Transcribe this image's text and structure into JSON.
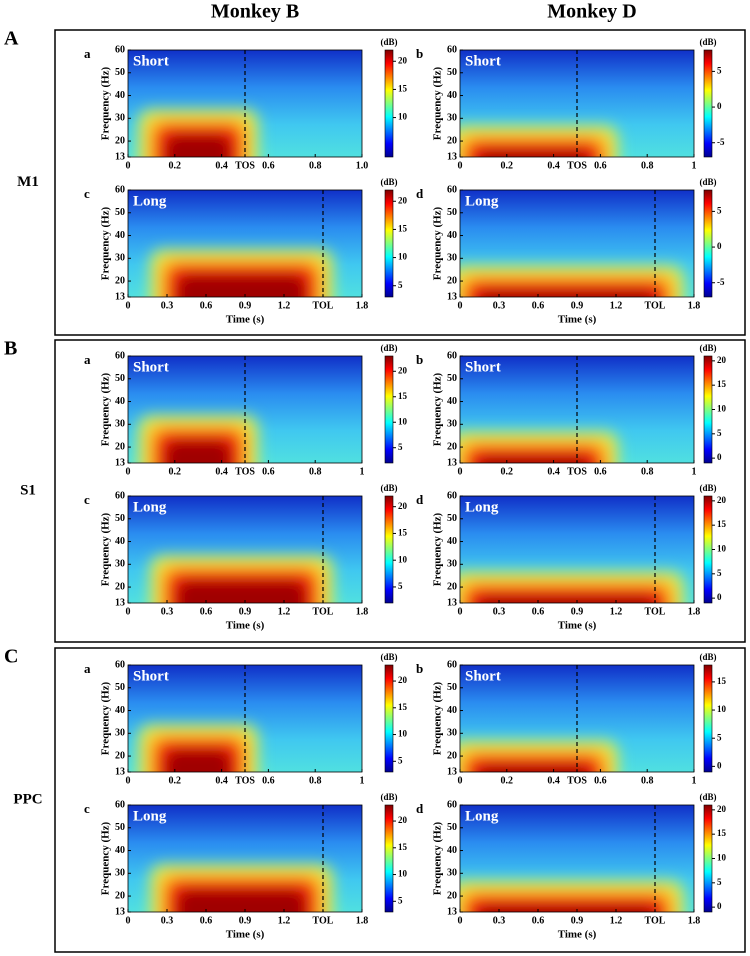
{
  "columns": [
    "Monkey B",
    "Monkey D"
  ],
  "sections": [
    {
      "letter": "A",
      "region": "M1",
      "panels": [
        {
          "letter": "a",
          "label": "Short",
          "xlim": [
            0,
            1
          ],
          "xticks": [
            0,
            0.2,
            0.4,
            {
              "value": 0.5,
              "label": "TOS"
            },
            0.6,
            0.8,
            {
              "value": 1,
              "label": "1.0"
            }
          ],
          "ylim": [
            13,
            60
          ],
          "yticks": [
            13,
            20,
            30,
            40,
            50,
            60
          ],
          "ylabel": "Frequency (Hz)",
          "clim": [
            3,
            22
          ],
          "cticks": [
            10,
            15,
            20
          ],
          "clabel": "(dB)"
        },
        {
          "letter": "b",
          "label": "Short",
          "xlim": [
            0,
            1
          ],
          "xticks": [
            0,
            0.2,
            0.4,
            {
              "value": 0.5,
              "label": "TOS"
            },
            0.6,
            0.8,
            1
          ],
          "ylim": [
            13,
            60
          ],
          "yticks": [
            13,
            20,
            30,
            40,
            50,
            60
          ],
          "ylabel": "Frequency (Hz)",
          "clim": [
            -7,
            8
          ],
          "cticks": [
            -5,
            0,
            5
          ],
          "clabel": "(dB)"
        },
        {
          "letter": "c",
          "label": "Long",
          "xlim": [
            0,
            1.8
          ],
          "xticks": [
            0,
            0.3,
            0.6,
            0.9,
            1.2,
            {
              "value": 1.5,
              "label": "TOL"
            },
            1.8
          ],
          "ylim": [
            13,
            60
          ],
          "yticks": [
            13,
            20,
            30,
            40,
            50,
            60
          ],
          "ylabel": "Frequency (Hz)",
          "xlabel": "Time (s)",
          "clim": [
            3,
            22
          ],
          "cticks": [
            5,
            10,
            15,
            20
          ],
          "clabel": "(dB)"
        },
        {
          "letter": "d",
          "label": "Long",
          "xlim": [
            0,
            1.8
          ],
          "xticks": [
            0,
            0.3,
            0.6,
            0.9,
            1.2,
            {
              "value": 1.5,
              "label": "TOL"
            },
            1.8
          ],
          "ylim": [
            13,
            60
          ],
          "yticks": [
            13,
            20,
            30,
            40,
            50,
            60
          ],
          "ylabel": "Frequency (Hz)",
          "xlabel": "Time (s)",
          "clim": [
            -7,
            8
          ],
          "cticks": [
            -5,
            0,
            5
          ],
          "clabel": "(dB)"
        }
      ]
    },
    {
      "letter": "B",
      "region": "S1",
      "panels": [
        {
          "letter": "a",
          "label": "Short",
          "xlim": [
            0,
            1
          ],
          "xticks": [
            0,
            0.2,
            0.4,
            {
              "value": 0.5,
              "label": "TOS"
            },
            0.6,
            0.8,
            1
          ],
          "ylim": [
            13,
            60
          ],
          "yticks": [
            13,
            20,
            30,
            40,
            50,
            60
          ],
          "ylabel": "Frequency (Hz)",
          "clim": [
            2,
            23
          ],
          "cticks": [
            5,
            10,
            15,
            20
          ],
          "clabel": "(dB)"
        },
        {
          "letter": "b",
          "label": "Short",
          "xlim": [
            0,
            1
          ],
          "xticks": [
            0,
            0.2,
            0.4,
            {
              "value": 0.5,
              "label": "TOS"
            },
            0.6,
            0.8,
            1
          ],
          "ylim": [
            13,
            60
          ],
          "yticks": [
            13,
            20,
            30,
            40,
            50,
            60
          ],
          "ylabel": "Frequency (Hz)",
          "clim": [
            -1,
            21
          ],
          "cticks": [
            0,
            5,
            10,
            15,
            20
          ],
          "clabel": "(dB)"
        },
        {
          "letter": "c",
          "label": "Long",
          "xlim": [
            0,
            1.8
          ],
          "xticks": [
            0,
            0.3,
            0.6,
            0.9,
            1.2,
            {
              "value": 1.5,
              "label": "TOL"
            },
            1.8
          ],
          "ylim": [
            13,
            60
          ],
          "yticks": [
            13,
            20,
            30,
            40,
            50,
            60
          ],
          "ylabel": "Frequency (Hz)",
          "xlabel": "Time (s)",
          "clim": [
            2,
            22
          ],
          "cticks": [
            5,
            10,
            15,
            20
          ],
          "clabel": "(dB)"
        },
        {
          "letter": "d",
          "label": "Long",
          "xlim": [
            0,
            1.8
          ],
          "xticks": [
            0,
            0.3,
            0.6,
            0.9,
            1.2,
            {
              "value": 1.5,
              "label": "TOL"
            },
            1.8
          ],
          "ylim": [
            13,
            60
          ],
          "yticks": [
            13,
            20,
            30,
            40,
            50,
            60
          ],
          "ylabel": "Frequency (Hz)",
          "xlabel": "Time (s)",
          "clim": [
            -1,
            21
          ],
          "cticks": [
            0,
            5,
            10,
            15,
            20
          ],
          "clabel": "(dB)"
        }
      ]
    },
    {
      "letter": "C",
      "region": "PPC",
      "panels": [
        {
          "letter": "a",
          "label": "Short",
          "xlim": [
            0,
            1
          ],
          "xticks": [
            0,
            0.2,
            0.4,
            {
              "value": 0.5,
              "label": "TOS"
            },
            0.6,
            0.8,
            1
          ],
          "ylim": [
            13,
            60
          ],
          "yticks": [
            13,
            20,
            30,
            40,
            50,
            60
          ],
          "ylabel": "Frequency (Hz)",
          "clim": [
            3,
            23
          ],
          "cticks": [
            5,
            10,
            15,
            20
          ],
          "clabel": "(dB)"
        },
        {
          "letter": "b",
          "label": "Short",
          "xlim": [
            0,
            1
          ],
          "xticks": [
            0,
            0.2,
            0.4,
            {
              "value": 0.5,
              "label": "TOS"
            },
            0.6,
            0.8,
            1
          ],
          "ylim": [
            13,
            60
          ],
          "yticks": [
            13,
            20,
            30,
            40,
            50,
            60
          ],
          "ylabel": "Frequency (Hz)",
          "clim": [
            -1,
            18
          ],
          "cticks": [
            0,
            5,
            10,
            15
          ],
          "clabel": "(dB)"
        },
        {
          "letter": "c",
          "label": "Long",
          "xlim": [
            0,
            1.8
          ],
          "xticks": [
            0,
            0.3,
            0.6,
            0.9,
            1.2,
            {
              "value": 1.5,
              "label": "TOL"
            },
            1.8
          ],
          "ylim": [
            13,
            60
          ],
          "yticks": [
            13,
            20,
            30,
            40,
            50,
            60
          ],
          "ylabel": "Frequency (Hz)",
          "xlabel": "Time (s)",
          "clim": [
            3,
            23
          ],
          "cticks": [
            5,
            10,
            15,
            20
          ],
          "clabel": "(dB)"
        },
        {
          "letter": "d",
          "label": "Long",
          "xlim": [
            0,
            1.8
          ],
          "xticks": [
            0,
            0.3,
            0.6,
            0.9,
            1.2,
            {
              "value": 1.5,
              "label": "TOL"
            },
            1.8
          ],
          "ylim": [
            13,
            60
          ],
          "yticks": [
            13,
            20,
            30,
            40,
            50,
            60
          ],
          "ylabel": "Frequency (Hz)",
          "xlabel": "Time (s)",
          "clim": [
            -1,
            21
          ],
          "cticks": [
            0,
            5,
            10,
            15,
            20
          ],
          "clabel": "(dB)"
        }
      ]
    }
  ]
}
